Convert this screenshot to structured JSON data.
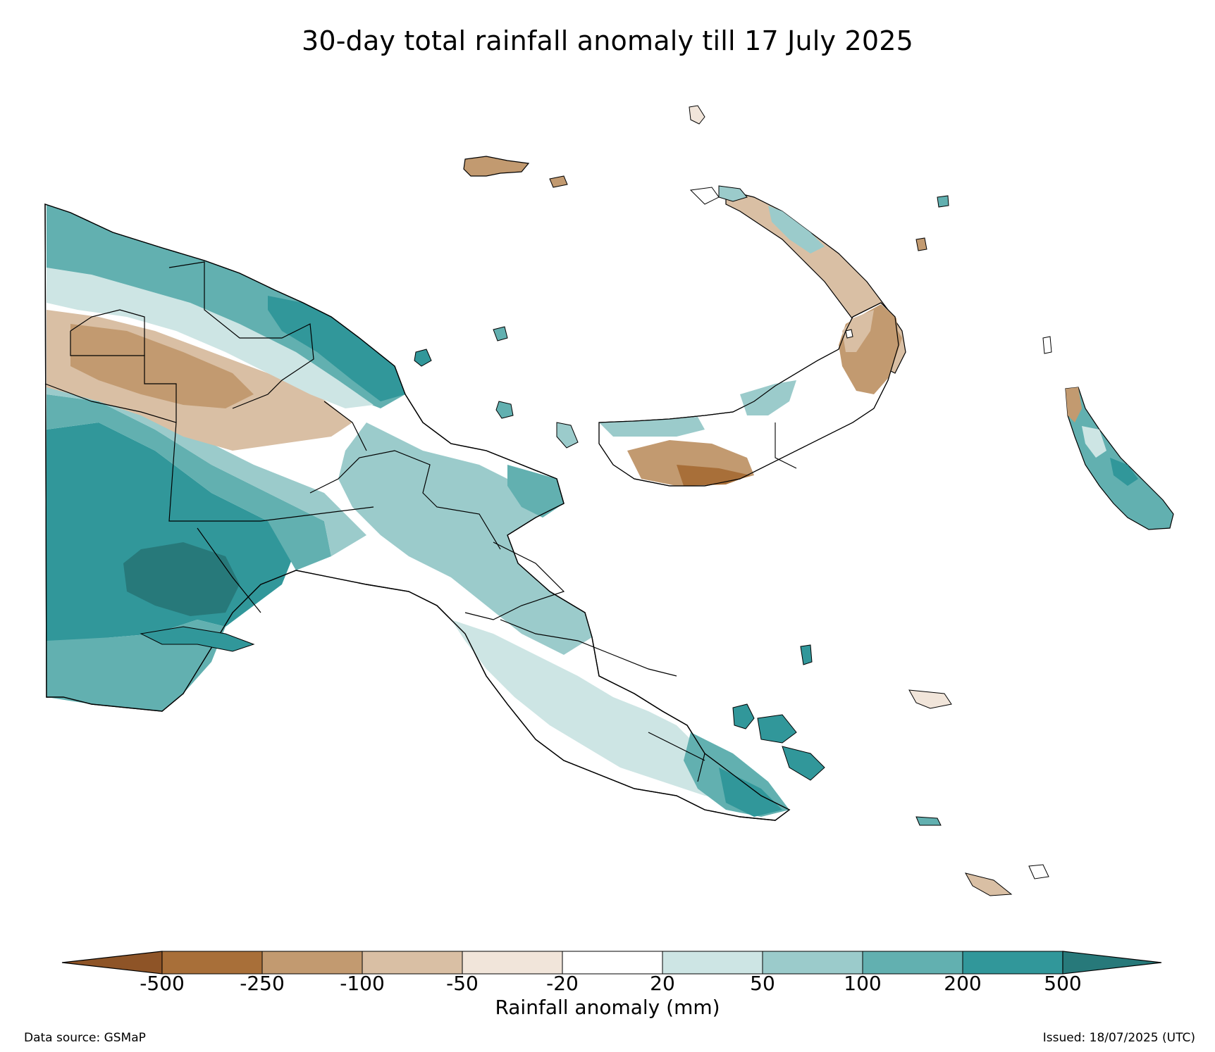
{
  "title": "30-day total rainfall anomaly till 17 July 2025",
  "colorbar": {
    "label": "Rainfall anomaly (mm)",
    "ticks": [
      "-500",
      "-250",
      "-100",
      "-50",
      "-20",
      "20",
      "50",
      "100",
      "200",
      "500"
    ],
    "colors": [
      "#8e5427",
      "#a86f39",
      "#c29a70",
      "#d9bfa4",
      "#f1e5da",
      "#ffffff",
      "#cde5e4",
      "#9bcbcb",
      "#62b0b0",
      "#31979a",
      "#27797a"
    ]
  },
  "footer": {
    "source": "Data source: GSMaP",
    "issued": "Issued: 18/07/2025 (UTC)"
  }
}
